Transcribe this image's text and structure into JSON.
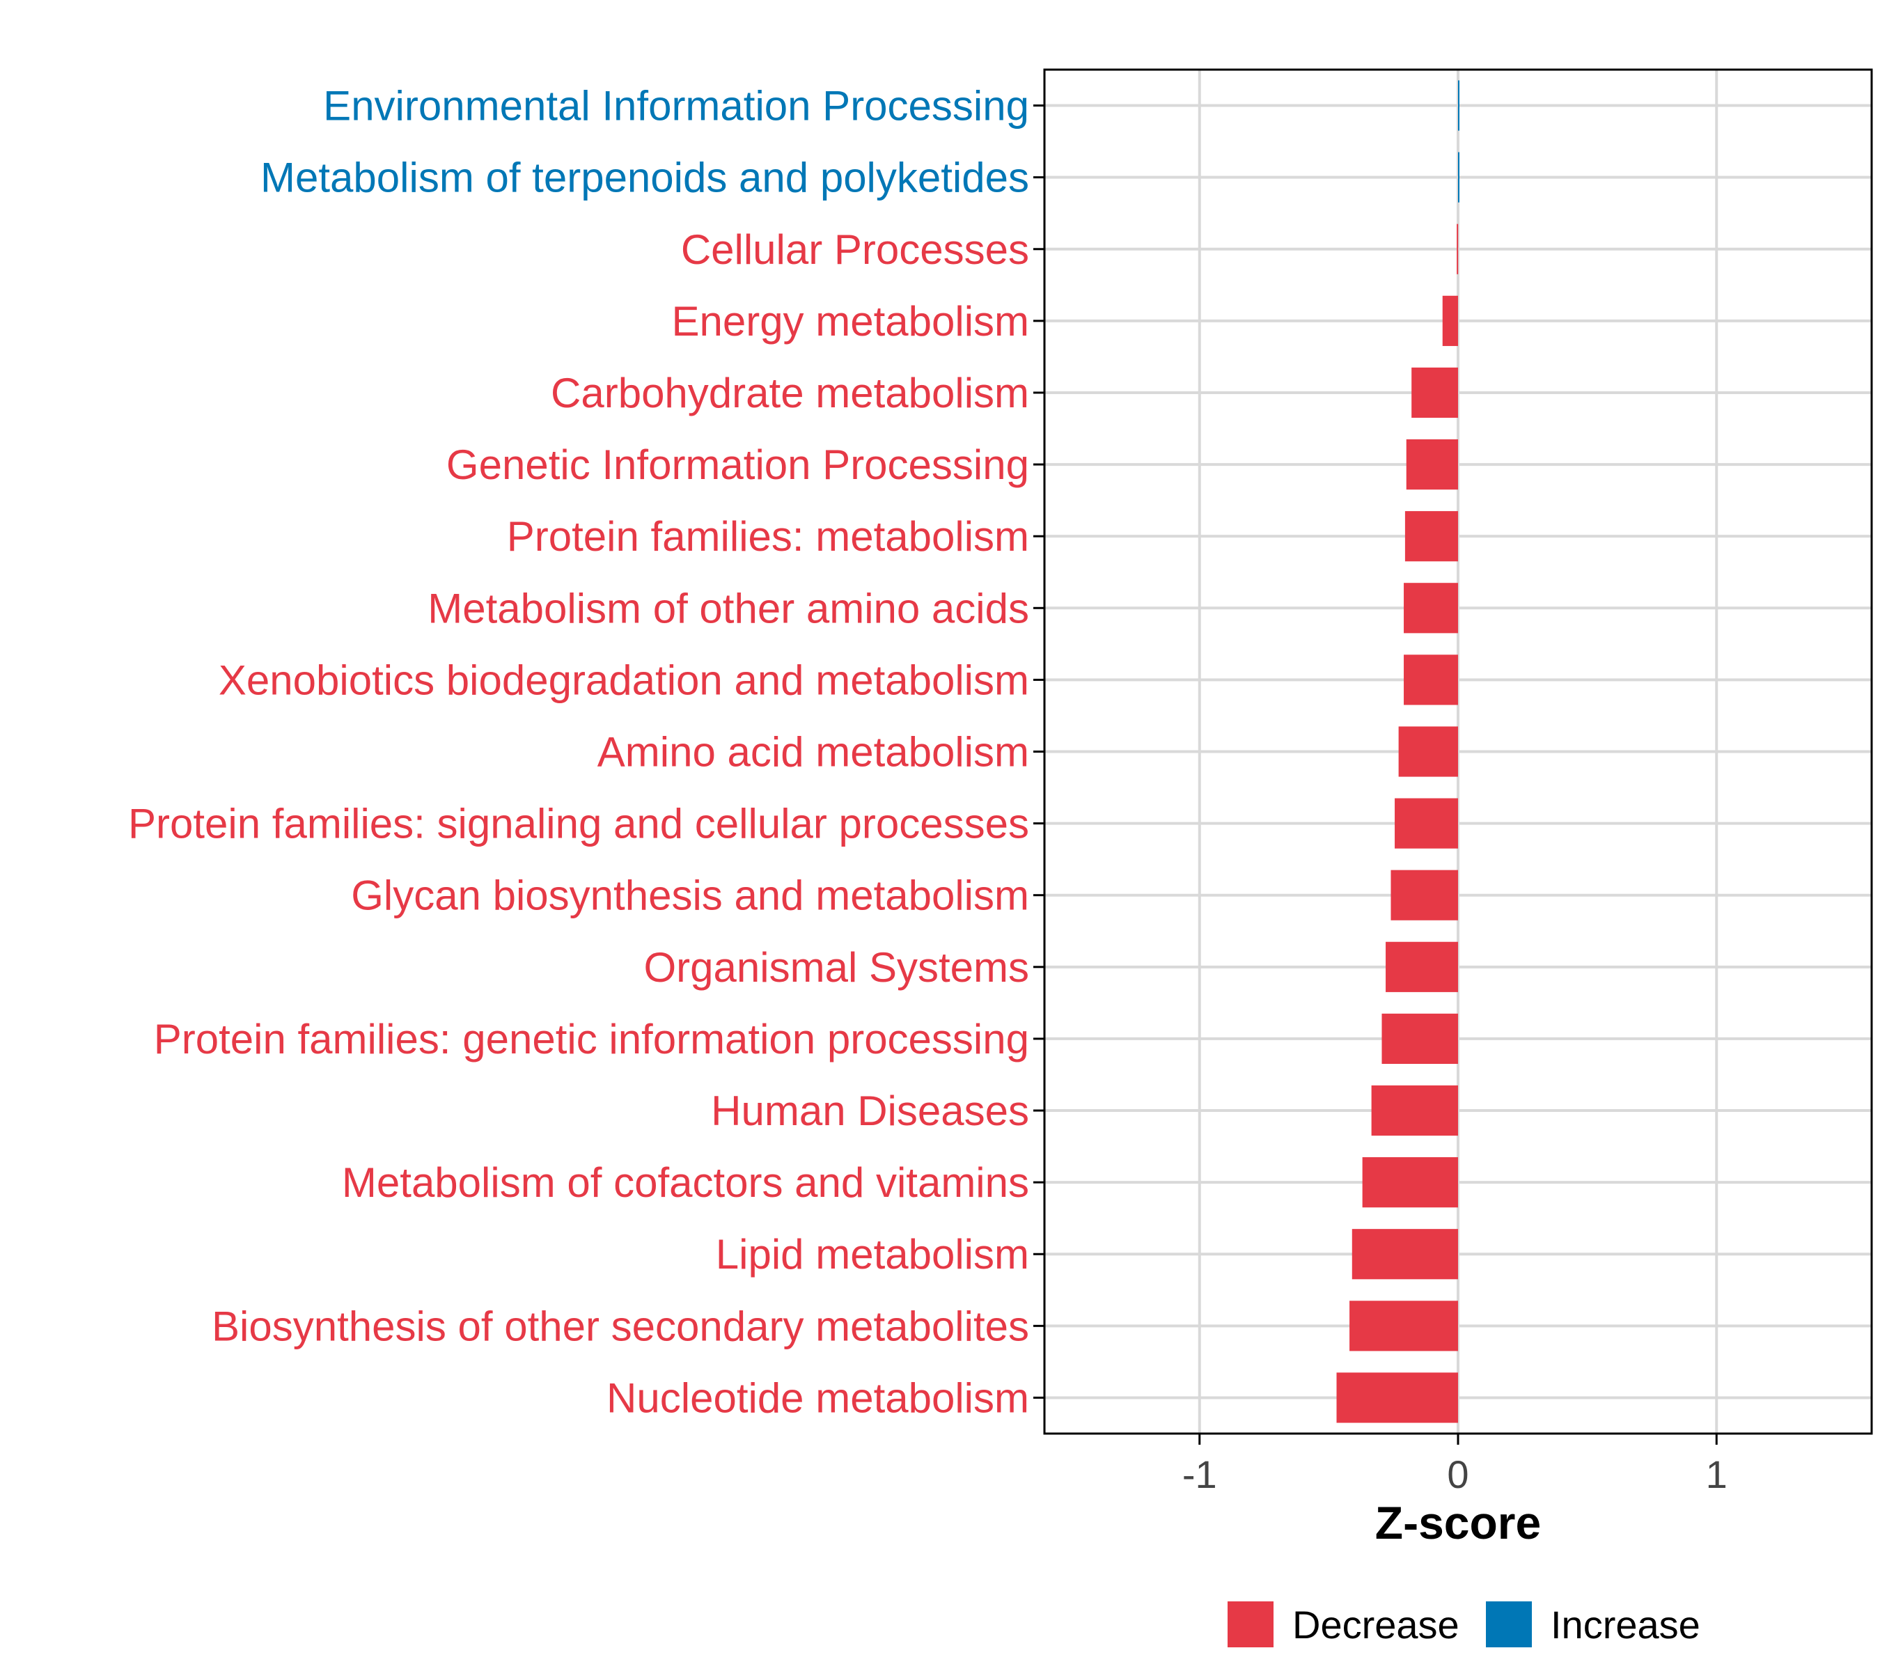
{
  "chart_data": {
    "type": "bar",
    "orientation": "horizontal",
    "title": "",
    "xlabel": "Z-score",
    "ylabel": "",
    "xlim": [
      -1.6,
      1.6
    ],
    "xticks": [
      -1,
      0,
      1
    ],
    "xtick_labels": [
      "-1",
      "0",
      "1"
    ],
    "grid": true,
    "categories": [
      "Environmental Information Processing",
      "Metabolism of terpenoids and polyketides",
      "Cellular Processes",
      "Energy metabolism",
      "Carbohydrate metabolism",
      "Genetic Information Processing",
      "Protein families: metabolism",
      "Metabolism of other amino acids",
      "Xenobiotics biodegradation and metabolism",
      "Amino acid metabolism",
      "Protein families: signaling and cellular processes",
      "Glycan biosynthesis and metabolism",
      "Organismal Systems",
      "Protein families: genetic information processing",
      "Human Diseases",
      "Metabolism of cofactors and vitamins",
      "Lipid metabolism",
      "Biosynthesis of other secondary metabolites",
      "Nucleotide metabolism"
    ],
    "values": [
      0.005,
      0.002,
      -0.005,
      -0.06,
      -0.18,
      -0.2,
      -0.205,
      -0.21,
      -0.21,
      -0.23,
      -0.245,
      -0.26,
      -0.28,
      -0.295,
      -0.335,
      -0.37,
      -0.41,
      -0.42,
      -0.47
    ],
    "groups": [
      "Increase",
      "Increase",
      "Decrease",
      "Decrease",
      "Decrease",
      "Decrease",
      "Decrease",
      "Decrease",
      "Decrease",
      "Decrease",
      "Decrease",
      "Decrease",
      "Decrease",
      "Decrease",
      "Decrease",
      "Decrease",
      "Decrease",
      "Decrease",
      "Decrease"
    ],
    "legend": {
      "position": "bottom",
      "entries": [
        {
          "label": "Decrease",
          "color": "#E63946"
        },
        {
          "label": "Increase",
          "color": "#0077B6"
        }
      ]
    },
    "colors": {
      "Decrease": "#E63946",
      "Increase": "#0077B6",
      "grid": "#D9D9D9",
      "axis": "#000000",
      "tick_label": "#444444"
    }
  }
}
